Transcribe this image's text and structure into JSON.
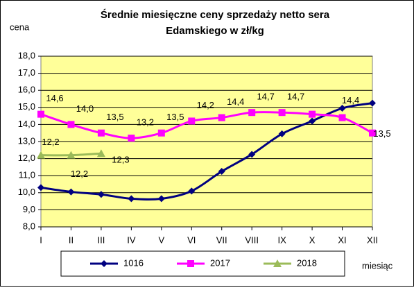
{
  "chart_data": {
    "type": "line",
    "title": "Średnie miesięczne ceny sprzedaży netto sera",
    "subtitle": "Edamskiego w zł/kg",
    "ylabel": "cena",
    "xlabel": "miesiąc",
    "categories": [
      "I",
      "II",
      "III",
      "IV",
      "V",
      "VI",
      "VII",
      "VIII",
      "IX",
      "X",
      "XI",
      "XII"
    ],
    "ylim": [
      8,
      18
    ],
    "yticks": [
      {
        "value": 8,
        "label": "8,0"
      },
      {
        "value": 9,
        "label": "9,0"
      },
      {
        "value": 10,
        "label": "10,0"
      },
      {
        "value": 11,
        "label": "11,0"
      },
      {
        "value": 12,
        "label": "12,0"
      },
      {
        "value": 13,
        "label": "13,0"
      },
      {
        "value": 14,
        "label": "14,0"
      },
      {
        "value": 15,
        "label": "15,0"
      },
      {
        "value": 16,
        "label": "16,0"
      },
      {
        "value": 17,
        "label": "17,0"
      },
      {
        "value": 18,
        "label": "18,0"
      }
    ],
    "grid": true,
    "series": [
      {
        "name": "1016",
        "color": "#000080",
        "values": [
          10.3,
          10.05,
          9.9,
          9.65,
          9.65,
          10.1,
          11.25,
          12.25,
          13.45,
          14.2,
          14.95,
          15.25
        ]
      },
      {
        "name": "2017",
        "color": "#ff00ff",
        "values": [
          14.6,
          14.0,
          13.5,
          13.2,
          13.5,
          14.2,
          14.4,
          14.7,
          14.7,
          14.6,
          14.4,
          13.5
        ],
        "value_labels": [
          "14,6",
          "14,0",
          "13,5",
          "13,2",
          "13,5",
          "14,2",
          "14,4",
          "14,7",
          "14,7",
          null,
          "14,4",
          "13,5"
        ]
      },
      {
        "name": "2018",
        "color": "#9bbb59",
        "values": [
          12.2,
          12.2,
          12.3,
          null,
          null,
          null,
          null,
          null,
          null,
          null,
          null,
          null
        ],
        "value_labels": [
          "12,2",
          "12,2",
          "12,3",
          null,
          null,
          null,
          null,
          null,
          null,
          null,
          null,
          null
        ]
      }
    ]
  }
}
